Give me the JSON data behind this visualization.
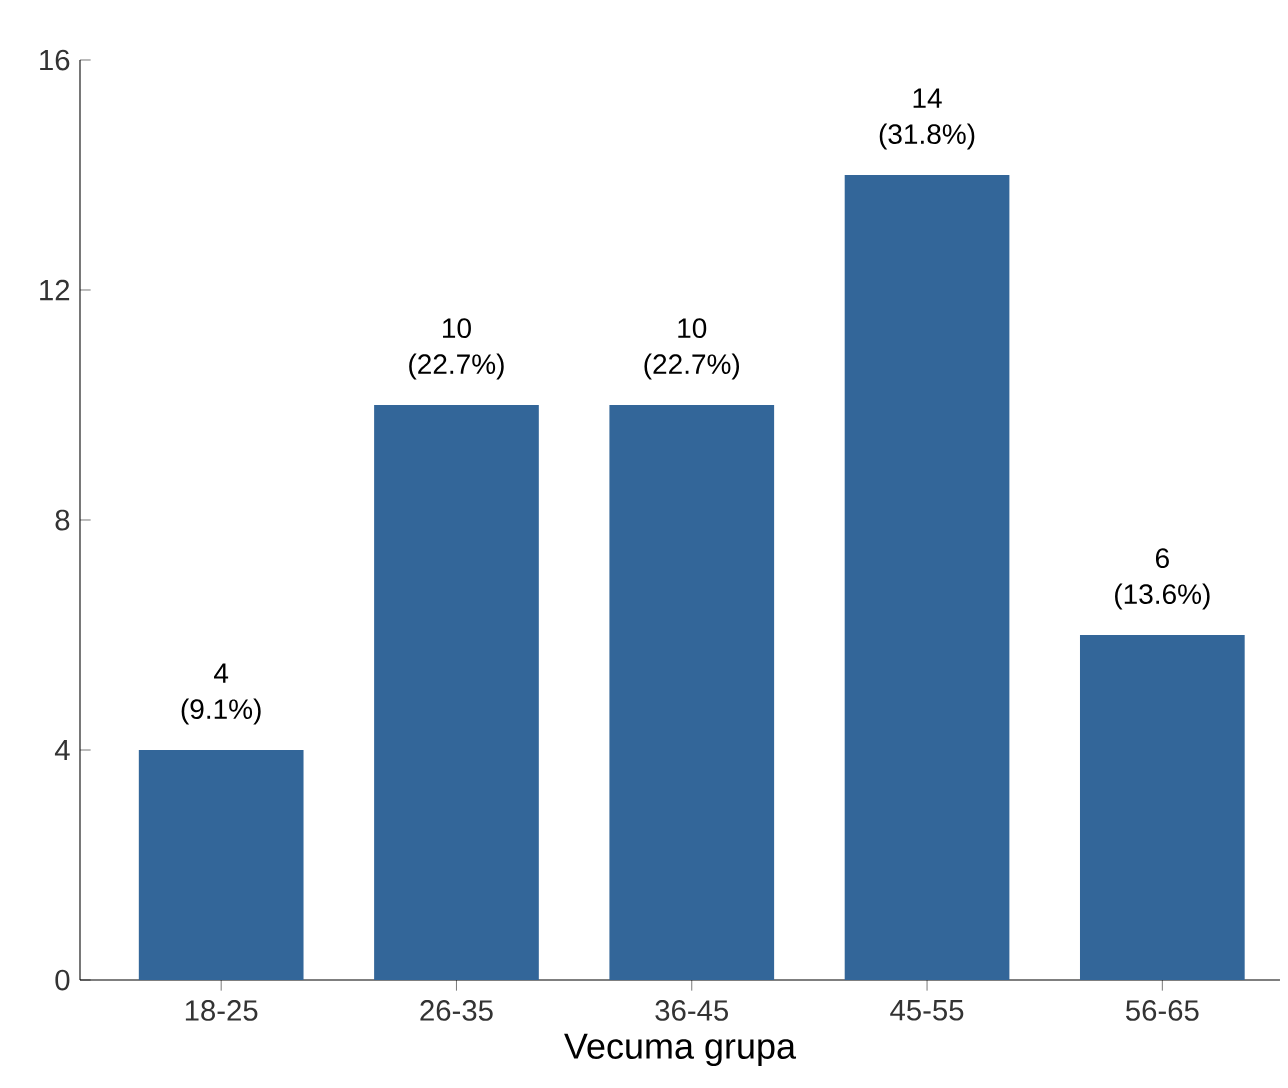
{
  "chart_data": {
    "type": "bar",
    "xlabel": "Vecuma grupa",
    "categories": [
      "18-25",
      "26-35",
      "36-45",
      "45-55",
      "56-65"
    ],
    "values": [
      4,
      10,
      10,
      14,
      6
    ],
    "value_labels": [
      "4 (9.1%)",
      "10 (22.7%)",
      "10 (22.7%)",
      "14 (31.8%)",
      "6 (13.6%)"
    ],
    "color": "#336699",
    "ylim": [
      0,
      16
    ],
    "yticks": [
      0,
      4,
      8,
      12,
      16
    ]
  }
}
